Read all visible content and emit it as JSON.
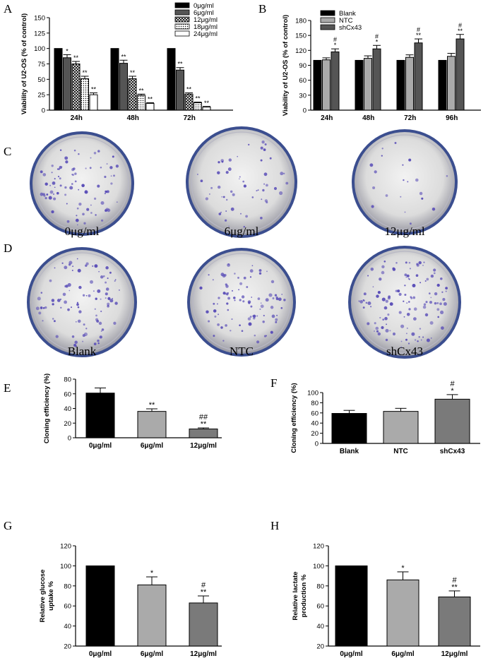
{
  "panel_labels": [
    "A",
    "B",
    "C",
    "D",
    "E",
    "F",
    "G",
    "H"
  ],
  "colors": {
    "black": "#000000",
    "gray_dark": "#555555",
    "gray_mid": "#7a7a7a",
    "gray_light": "#aaaaaa",
    "dish_stain": "#5b4fb8",
    "dish_rim": "#3b4e8f"
  },
  "patterns": [
    "solid-black",
    "solid-gray-dark",
    "crosshatch",
    "dots",
    "white"
  ],
  "dish_captions_C": [
    "0μg/ml",
    "6μg/ml",
    "12μg/ml"
  ],
  "dish_captions_D": [
    "Blank",
    "NTC",
    "shCx43"
  ],
  "chart_data": [
    {
      "id": "A",
      "type": "bar",
      "ylabel": "Viability of U2-OS (% of control)",
      "categories": [
        "24h",
        "48h",
        "72h"
      ],
      "yticks": [
        0,
        25,
        50,
        75,
        100,
        125,
        150
      ],
      "ylim": [
        0,
        150
      ],
      "legend": "top-right",
      "series": [
        {
          "name": "0μg/ml",
          "values": [
            100,
            100,
            100
          ],
          "errors": [
            0,
            0,
            0
          ],
          "sig": [
            "",
            "",
            ""
          ]
        },
        {
          "name": "6μg/ml",
          "values": [
            85,
            76,
            65
          ],
          "errors": [
            5,
            5,
            4
          ],
          "sig": [
            "*",
            "**",
            "**"
          ]
        },
        {
          "name": "12μg/ml",
          "values": [
            75,
            51,
            26
          ],
          "errors": [
            4,
            4,
            2
          ],
          "sig": [
            "**",
            "**",
            "**"
          ]
        },
        {
          "name": "18μg/ml",
          "values": [
            51,
            24,
            12
          ],
          "errors": [
            4,
            2,
            1
          ],
          "sig": [
            "**",
            "**",
            "**"
          ]
        },
        {
          "name": "24μg/ml",
          "values": [
            25,
            11,
            5
          ],
          "errors": [
            3,
            1,
            1
          ],
          "sig": [
            "**",
            "**",
            "**"
          ]
        }
      ]
    },
    {
      "id": "B",
      "type": "bar",
      "ylabel": "Viability of U2-OS (% of control)",
      "categories": [
        "24h",
        "48h",
        "72h",
        "96h"
      ],
      "yticks": [
        0,
        30,
        60,
        90,
        120,
        150,
        180
      ],
      "ylim": [
        0,
        180
      ],
      "legend": "top-left",
      "series": [
        {
          "name": "Blank",
          "values": [
            100,
            100,
            100,
            100
          ],
          "errors": [
            0,
            0,
            0,
            0
          ],
          "sig": [
            "",
            "",
            "",
            ""
          ]
        },
        {
          "name": "NTC",
          "values": [
            101,
            104,
            106,
            108
          ],
          "errors": [
            4,
            5,
            5,
            6
          ],
          "sig": [
            "",
            "",
            "",
            ""
          ]
        },
        {
          "name": "shCx43",
          "values": [
            117,
            123,
            135,
            143
          ],
          "errors": [
            6,
            7,
            8,
            9
          ],
          "sig": [
            "#\n*",
            "#\n*",
            "#\n**",
            "#\n**"
          ]
        }
      ]
    },
    {
      "id": "E",
      "type": "bar",
      "ylabel": "Cloning efficiency (%)",
      "categories": [
        "0μg/ml",
        "6μg/ml",
        "12μg/ml"
      ],
      "yticks": [
        0,
        20,
        40,
        60,
        80
      ],
      "ylim": [
        0,
        80
      ],
      "series": [
        {
          "name": "",
          "values": [
            61,
            36,
            12
          ],
          "errors": [
            7,
            3.5,
            1.5
          ],
          "sig": [
            "",
            "**",
            "##\n**"
          ]
        }
      ]
    },
    {
      "id": "F",
      "type": "bar",
      "ylabel": "Cloning efficiency (%)",
      "categories": [
        "Blank",
        "NTC",
        "shCx43"
      ],
      "yticks": [
        0,
        20,
        40,
        60,
        80,
        100
      ],
      "ylim": [
        0,
        100
      ],
      "series": [
        {
          "name": "",
          "values": [
            59,
            63,
            87
          ],
          "errors": [
            6,
            6,
            9
          ],
          "sig": [
            "",
            "",
            "#\n*"
          ]
        }
      ]
    },
    {
      "id": "G",
      "type": "bar",
      "ylabel": "Relative glucose uptake %",
      "categories": [
        "0μg/ml",
        "6μg/ml",
        "12μg/ml"
      ],
      "yticks": [
        20,
        40,
        60,
        80,
        100,
        120
      ],
      "ylim": [
        20,
        120
      ],
      "series": [
        {
          "name": "",
          "values": [
            100,
            81,
            63
          ],
          "errors": [
            0,
            8,
            7
          ],
          "sig": [
            "",
            "*",
            "#\n**"
          ]
        }
      ]
    },
    {
      "id": "H",
      "type": "bar",
      "ylabel": "Relative lactate production %",
      "categories": [
        "0μg/ml",
        "6μg/ml",
        "12μg/ml"
      ],
      "yticks": [
        20,
        40,
        60,
        80,
        100,
        120
      ],
      "ylim": [
        20,
        120
      ],
      "series": [
        {
          "name": "",
          "values": [
            100,
            86,
            69
          ],
          "errors": [
            0,
            8,
            6
          ],
          "sig": [
            "",
            "*",
            "#\n**"
          ]
        }
      ]
    }
  ]
}
